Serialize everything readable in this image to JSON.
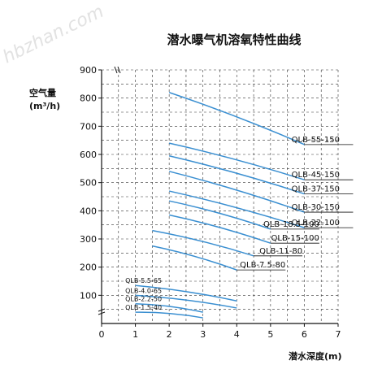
{
  "watermark": "hbzhan.com",
  "chart_data": {
    "type": "line",
    "title": "潜水曝气机溶氧特性曲线",
    "ylabel": "空气量",
    "ylabel_unit": "(m³/h)",
    "xlabel": "潜水深度(m)",
    "xlim": [
      0,
      7
    ],
    "ylim": [
      0,
      900
    ],
    "x_ticks": [
      "0",
      "1",
      "2",
      "3",
      "4",
      "5",
      "6",
      "7"
    ],
    "y_ticks": [
      "100",
      "200",
      "300",
      "400",
      "500",
      "600",
      "700",
      "800",
      "900"
    ],
    "grid": true,
    "series": [
      {
        "name": "QLB-55-150",
        "x": [
          2,
          6
        ],
        "y": [
          820,
          635
        ]
      },
      {
        "name": "QLB-45-150",
        "x": [
          2,
          6
        ],
        "y": [
          640,
          510
        ]
      },
      {
        "name": "QLB-37-150",
        "x": [
          2,
          6
        ],
        "y": [
          595,
          460
        ]
      },
      {
        "name": "QLB-30-150",
        "x": [
          2,
          6
        ],
        "y": [
          540,
          395
        ]
      },
      {
        "name": "QLB-22-100",
        "x": [
          2,
          6
        ],
        "y": [
          470,
          340
        ]
      },
      {
        "name": "QLB-18.5-100",
        "x": [
          2,
          5
        ],
        "y": [
          435,
          335
        ]
      },
      {
        "name": "QLB-15-100",
        "x": [
          2,
          5
        ],
        "y": [
          385,
          285
        ]
      },
      {
        "name": "QLB-11-80",
        "x": [
          1.5,
          4.5
        ],
        "y": [
          330,
          240
        ]
      },
      {
        "name": "QLB-7.5-80",
        "x": [
          1.5,
          4
        ],
        "y": [
          275,
          190
        ]
      },
      {
        "name": "QLB-5.5-65",
        "x": [
          1,
          4
        ],
        "y": [
          135,
          80
        ]
      },
      {
        "name": "QLB-4.0-65",
        "x": [
          1,
          4
        ],
        "y": [
          100,
          55
        ]
      },
      {
        "name": "QLB-2.2-50",
        "x": [
          1,
          3
        ],
        "y": [
          70,
          40
        ]
      },
      {
        "name": "QLB-1.5-40",
        "x": [
          1,
          3
        ],
        "y": [
          40,
          20
        ]
      }
    ]
  }
}
